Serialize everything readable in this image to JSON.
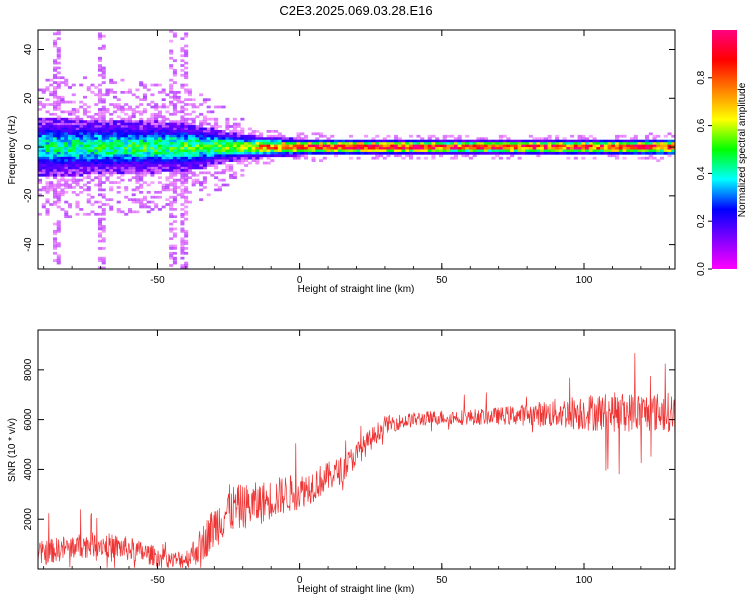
{
  "figure": {
    "title": "C2E3.2025.069.03.28.E16"
  },
  "chart_data": [
    {
      "type": "heatmap",
      "title": "C2E3.2025.069.03.28.E16",
      "xlabel": "Height of straight line (km)",
      "ylabel": "Frequency (Hz)",
      "xlim": [
        -92,
        132
      ],
      "ylim": [
        -50,
        48
      ],
      "xticks": [
        -50,
        0,
        50,
        100
      ],
      "xtick_labels": [
        "-50",
        "0",
        "50",
        "100"
      ],
      "yticks": [
        -40,
        -20,
        0,
        20,
        40
      ],
      "ytick_labels": [
        "-40",
        "-20",
        "0",
        "20",
        "40"
      ],
      "colorbar": {
        "label": "Normalized spectral amplitude",
        "range": [
          0,
          1
        ],
        "ticks": [
          0.0,
          0.2,
          0.4,
          0.6,
          0.8
        ],
        "tick_labels": [
          "0.0",
          "0.2",
          "0.4",
          "0.6",
          "0.8"
        ],
        "colormap": [
          "#ff00ff",
          "#8000ff",
          "#0000ff",
          "#00ffff",
          "#00ff00",
          "#ffff00",
          "#ff8000",
          "#ff0000",
          "#ff0080"
        ]
      },
      "features": {
        "ridge_frequency_hz": 0,
        "spread_hz": [
          {
            "x": -92,
            "hw": 12
          },
          {
            "x": -60,
            "hw": 11
          },
          {
            "x": -40,
            "hw": 10
          },
          {
            "x": -20,
            "hw": 5
          },
          {
            "x": 0,
            "hw": 3.5
          },
          {
            "x": 60,
            "hw": 3
          },
          {
            "x": 132,
            "hw": 3.5
          }
        ],
        "peak_amplitude": [
          {
            "x": -92,
            "v": 0.42
          },
          {
            "x": -30,
            "v": 0.5
          },
          {
            "x": -15,
            "v": 0.72
          },
          {
            "x": 0,
            "v": 0.85
          },
          {
            "x": 20,
            "v": 0.95
          },
          {
            "x": 60,
            "v": 0.9
          },
          {
            "x": 132,
            "v": 0.88
          }
        ],
        "vertical_streaks_km": [
          -85,
          -70,
          -45,
          -41
        ]
      }
    },
    {
      "type": "line",
      "xlabel": "Height of straight line (km)",
      "ylabel": "SNR (10 * v/v)",
      "xlim": [
        -92,
        132
      ],
      "ylim": [
        0,
        9600
      ],
      "xticks": [
        -50,
        0,
        50,
        100
      ],
      "xtick_labels": [
        "-50",
        "0",
        "50",
        "100"
      ],
      "yticks": [
        2000,
        4000,
        6000,
        8000
      ],
      "ytick_labels": [
        "2000",
        "4000",
        "6000",
        "8000"
      ],
      "color": "#ee3333",
      "series": [
        {
          "x": [
            -92,
            -80,
            -70,
            -60,
            -50,
            -45,
            -40,
            -35,
            -30,
            -25,
            -20,
            -15,
            -10,
            -5,
            0,
            5,
            10,
            15,
            20,
            25,
            30,
            40,
            50,
            60,
            70,
            80,
            90,
            100,
            110,
            120,
            132
          ],
          "values": [
            600,
            900,
            1000,
            800,
            500,
            350,
            400,
            900,
            1700,
            2400,
            2500,
            2600,
            2800,
            3000,
            3100,
            3400,
            3700,
            4000,
            4600,
            5200,
            5800,
            6000,
            6100,
            6100,
            6150,
            6200,
            6250,
            6300,
            6300,
            6300,
            6300
          ],
          "noise": [
            500,
            500,
            500,
            500,
            400,
            350,
            400,
            700,
            900,
            1000,
            900,
            900,
            800,
            800,
            700,
            700,
            600,
            550,
            500,
            450,
            350,
            300,
            300,
            320,
            350,
            450,
            600,
            750,
            800,
            800,
            800
          ]
        }
      ]
    }
  ]
}
